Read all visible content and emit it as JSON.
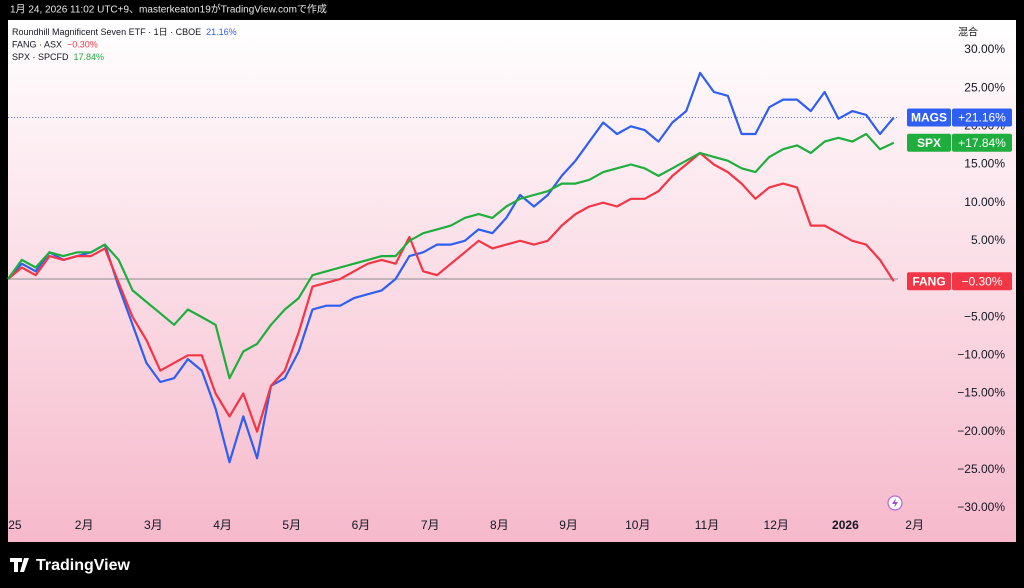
{
  "header": "1月 24, 2026 11:02 UTC+9、masterkeaton19がTradingView.comで作成",
  "brand": "TradingView",
  "chart_data": {
    "type": "line",
    "scale_label": "混合",
    "x": [
      -0.1,
      0.1,
      0.3,
      0.5,
      0.7,
      0.9,
      1.1,
      1.3,
      1.5,
      1.7,
      1.9,
      2.1,
      2.3,
      2.5,
      2.7,
      2.9,
      3.1,
      3.3,
      3.5,
      3.7,
      3.9,
      4.1,
      4.3,
      4.5,
      4.7,
      4.9,
      5.1,
      5.3,
      5.5,
      5.7,
      5.9,
      6.1,
      6.3,
      6.5,
      6.7,
      6.9,
      7.1,
      7.3,
      7.5,
      7.7,
      7.9,
      8.1,
      8.3,
      8.5,
      8.7,
      8.9,
      9.1,
      9.3,
      9.5,
      9.7,
      9.9,
      10.1,
      10.3,
      10.5,
      10.7,
      10.9,
      11.1,
      11.3,
      11.5,
      11.7,
      11.9,
      12.1,
      12.3,
      12.5,
      12.7
    ],
    "xlim": [
      -0.1,
      12.76
    ],
    "xticks": [
      {
        "value": 0,
        "label": "25"
      },
      {
        "value": 1,
        "label": "2月"
      },
      {
        "value": 2,
        "label": "3月"
      },
      {
        "value": 3,
        "label": "4月"
      },
      {
        "value": 4,
        "label": "5月"
      },
      {
        "value": 5,
        "label": "6月"
      },
      {
        "value": 6,
        "label": "7月"
      },
      {
        "value": 7,
        "label": "8月"
      },
      {
        "value": 8,
        "label": "9月"
      },
      {
        "value": 9,
        "label": "10月"
      },
      {
        "value": 10,
        "label": "11月"
      },
      {
        "value": 11,
        "label": "12月"
      },
      {
        "value": 12,
        "label": "2026"
      },
      {
        "value": 13,
        "label": "2月"
      }
    ],
    "ylim": [
      -30.66,
      33.93
    ],
    "yticks": [
      {
        "value": 30,
        "label": "30.00%"
      },
      {
        "value": 25,
        "label": "25.00%"
      },
      {
        "value": 20,
        "label": "20.00%"
      },
      {
        "value": 15,
        "label": "15.00%"
      },
      {
        "value": 10,
        "label": "10.00%"
      },
      {
        "value": 5,
        "label": "5.00%"
      },
      {
        "value": 0,
        "label": "0.00%"
      },
      {
        "value": -5,
        "label": "−5.00%"
      },
      {
        "value": -10,
        "label": "−10.00%"
      },
      {
        "value": -15,
        "label": "−15.00%"
      },
      {
        "value": -20,
        "label": "−20.00%"
      },
      {
        "value": -25,
        "label": "−25.00%"
      },
      {
        "value": -30,
        "label": "−30.00%"
      }
    ],
    "series": [
      {
        "name": "Roundhill Magnificent Seven ETF · 1日 · CBOE",
        "symbol": "MAGS",
        "last_label": "21.16%",
        "badge_label": "+21.16%",
        "color": "#2f5ff0",
        "values": [
          0,
          2.0,
          1.0,
          3.5,
          2.5,
          3.0,
          3.5,
          4.5,
          -1,
          -6,
          -11,
          -13.5,
          -13,
          -10.5,
          -12,
          -17,
          -24,
          -18,
          -23.5,
          -14,
          -13,
          -9.5,
          -4,
          -3.5,
          -3.5,
          -2.5,
          -2,
          -1.5,
          0,
          3,
          3.5,
          4.5,
          4.5,
          5,
          6.5,
          6,
          8,
          11,
          9.5,
          11,
          13.5,
          15.5,
          18,
          20.5,
          19,
          20,
          19.5,
          18,
          20.5,
          22,
          27,
          24.5,
          24,
          19,
          19,
          22.5,
          23.5,
          23.5,
          22,
          24.5,
          21,
          22,
          21.5,
          19,
          21.16
        ]
      },
      {
        "name": "FANG · ASX",
        "symbol": "FANG",
        "last_label": "−0.30%",
        "badge_label": "−0.30%",
        "color": "#f23645",
        "values": [
          0,
          1.5,
          0.5,
          3,
          2.5,
          3,
          3,
          4,
          -0.5,
          -5,
          -8,
          -12,
          -11,
          -10,
          -10,
          -15,
          -18,
          -15,
          -20,
          -14,
          -12,
          -7,
          -1,
          -0.5,
          0,
          1,
          2,
          2.5,
          2,
          5.5,
          1,
          0.5,
          2,
          3.5,
          5,
          4,
          4.5,
          5,
          4.5,
          5,
          7,
          8.5,
          9.5,
          10,
          9.5,
          10.5,
          10.5,
          11.5,
          13.5,
          15,
          16.5,
          15,
          14,
          12.5,
          10.5,
          12,
          12.5,
          12,
          7,
          7,
          6,
          5,
          4.5,
          2.5,
          -0.3
        ]
      },
      {
        "name": "SPX · SPCFD",
        "symbol": "SPX",
        "last_label": "17.84%",
        "badge_label": "+17.84%",
        "color": "#1fae3e",
        "values": [
          0,
          2.5,
          1.5,
          3.5,
          3.0,
          3.5,
          3.5,
          4.5,
          2.5,
          -1.5,
          -3,
          -4.5,
          -6,
          -4,
          -5,
          -6,
          -13,
          -9.5,
          -8.5,
          -6,
          -4,
          -2.5,
          0.5,
          1,
          1.5,
          2,
          2.5,
          3,
          3,
          5,
          6,
          6.5,
          7,
          8,
          8.5,
          8,
          9.5,
          10.5,
          11,
          11.5,
          12.5,
          12.5,
          13,
          14,
          14.5,
          15,
          14.5,
          13.5,
          14.5,
          15.5,
          16.5,
          16,
          15.5,
          14.5,
          14,
          16,
          17,
          17.5,
          16.5,
          18,
          18.5,
          18,
          19,
          17,
          17.84
        ]
      }
    ]
  }
}
